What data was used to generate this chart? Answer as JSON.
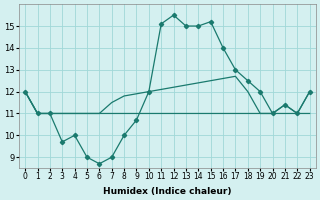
{
  "xlabel": "Humidex (Indice chaleur)",
  "ylabel": "",
  "background_color": "#d4f0f0",
  "grid_color": "#a0d8d8",
  "line_color": "#1a7a6e",
  "x": [
    0,
    1,
    2,
    3,
    4,
    5,
    6,
    7,
    8,
    9,
    10,
    11,
    12,
    13,
    14,
    15,
    16,
    17,
    18,
    19,
    20,
    21,
    22,
    23
  ],
  "line1": [
    12,
    11,
    11,
    9.7,
    10,
    9.0,
    8.7,
    9.0,
    10.0,
    10.7,
    12.0,
    15.1,
    15.5,
    15.0,
    15.0,
    15.2,
    14.0,
    13.0,
    12.5,
    12.0,
    11.0,
    11.4,
    11.0,
    12.0
  ],
  "line2": [
    12,
    11,
    11,
    11,
    11,
    11,
    11,
    11,
    11,
    11,
    11,
    11,
    11,
    11,
    11,
    11,
    11,
    11,
    11,
    11,
    11,
    11,
    11,
    11
  ],
  "line3": [
    12,
    11,
    11,
    11,
    11,
    11,
    11,
    11.5,
    11.8,
    11.9,
    12.0,
    12.1,
    12.2,
    12.3,
    12.4,
    12.5,
    12.6,
    12.7,
    12.0,
    11.0,
    11.0,
    11.4,
    11.0,
    12.0
  ],
  "ylim": [
    8.5,
    16.0
  ],
  "xlim": [
    -0.5,
    23.5
  ],
  "yticks": [
    9,
    10,
    11,
    12,
    13,
    14,
    15
  ],
  "xtick_labels": [
    "0",
    "1",
    "2",
    "3",
    "4",
    "5",
    "6",
    "7",
    "8",
    "9",
    "10",
    "11",
    "12",
    "13",
    "14",
    "15",
    "16",
    "17",
    "18",
    "19",
    "20",
    "21",
    "22",
    "23"
  ]
}
